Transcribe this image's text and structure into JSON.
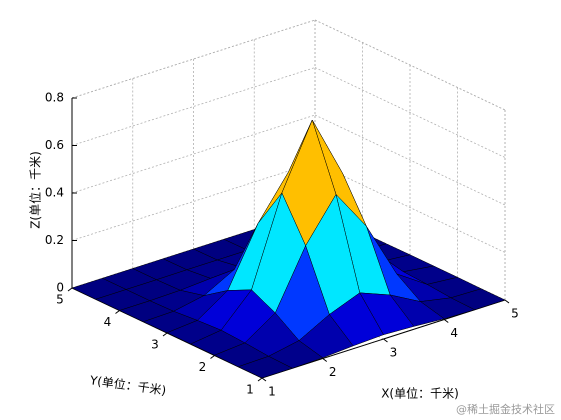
{
  "chart_data": {
    "type": "surface",
    "zlabel": "Z(单位：千米)",
    "xlabel": "X(单位：千米)",
    "ylabel": "Y(单位：千米)",
    "x": [
      1,
      1.5,
      2,
      2.5,
      3,
      3.5,
      4,
      4.5,
      5
    ],
    "y": [
      1,
      1.5,
      2,
      2.5,
      3,
      3.5,
      4,
      4.5,
      5
    ],
    "z": [
      [
        0,
        0,
        0.003,
        0.012,
        0.018,
        0.012,
        0.003,
        0,
        0
      ],
      [
        0,
        0.003,
        0.028,
        0.097,
        0.147,
        0.097,
        0.028,
        0.003,
        0
      ],
      [
        0.001,
        0.012,
        0.097,
        0.339,
        0.514,
        0.339,
        0.097,
        0.012,
        0.001
      ],
      [
        0.001,
        0.018,
        0.147,
        0.514,
        0.78,
        0.514,
        0.147,
        0.018,
        0.001
      ],
      [
        0.001,
        0.012,
        0.097,
        0.339,
        0.514,
        0.339,
        0.097,
        0.012,
        0.001
      ],
      [
        0,
        0.003,
        0.028,
        0.097,
        0.147,
        0.097,
        0.028,
        0.003,
        0
      ],
      [
        0,
        0,
        0.003,
        0.012,
        0.018,
        0.012,
        0.003,
        0,
        0
      ],
      [
        0,
        0,
        0,
        0.001,
        0.001,
        0.001,
        0,
        0,
        0
      ],
      [
        0,
        0,
        0,
        0,
        0,
        0,
        0,
        0,
        0
      ]
    ],
    "xlim": [
      1,
      5
    ],
    "ylim": [
      1,
      5
    ],
    "zlim": [
      0,
      0.8
    ],
    "xticks": [
      1,
      2,
      3,
      4,
      5
    ],
    "yticks": [
      1,
      2,
      3,
      4,
      5
    ],
    "zticks": [
      0,
      0.2,
      0.4,
      0.6,
      0.8
    ],
    "grid": true,
    "colormap": "jet",
    "edge_color": "#000000"
  },
  "watermark": "@稀土掘金技术社区"
}
